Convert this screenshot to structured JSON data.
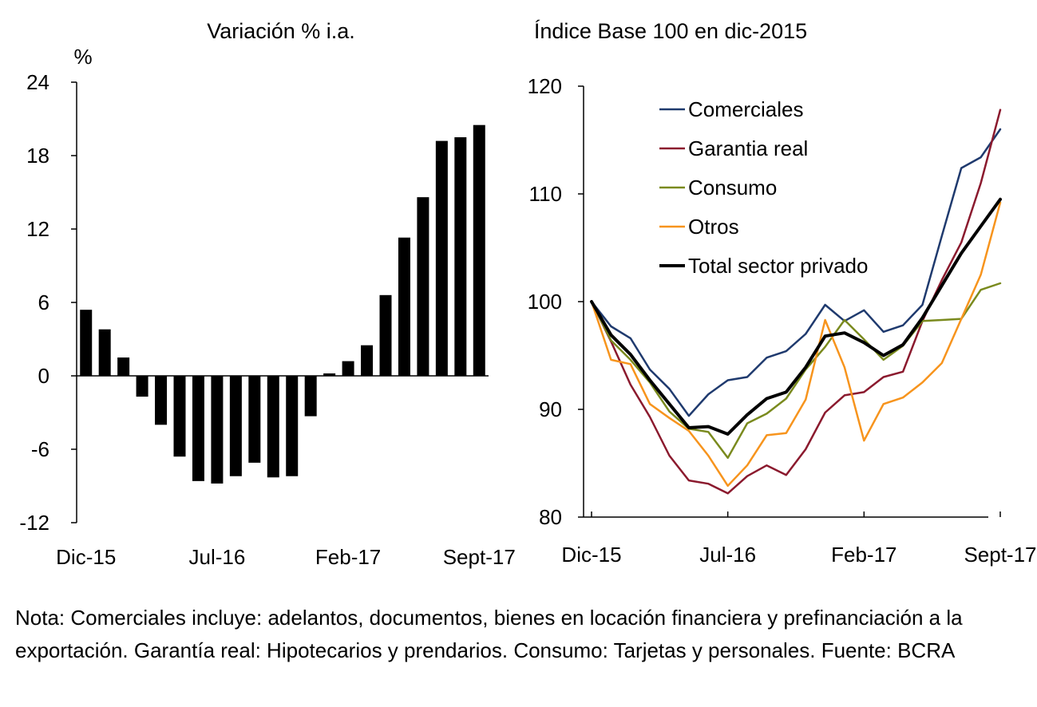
{
  "chart_data": [
    {
      "type": "bar",
      "title": "Variación % i.a.",
      "ylabel": "%",
      "ylim": [
        -12,
        24
      ],
      "yticks": [
        "24",
        "18",
        "12",
        "6",
        "0",
        "-6",
        "-12"
      ],
      "ytick_values": [
        24,
        18,
        12,
        6,
        0,
        -6,
        -12
      ],
      "xtick_labels": [
        "Dic-15",
        "Jul-16",
        "Feb-17",
        "Sept-17"
      ],
      "xtick_indices": [
        0,
        7,
        14,
        21
      ],
      "bar_color": "#000000",
      "values": [
        5.4,
        3.8,
        1.5,
        -1.7,
        -4.0,
        -6.6,
        -8.6,
        -8.8,
        -8.2,
        -7.1,
        -8.3,
        -8.2,
        -3.3,
        0.2,
        1.2,
        2.5,
        6.6,
        11.3,
        14.6,
        19.2,
        19.5,
        20.5
      ]
    },
    {
      "type": "line",
      "title": "Índice Base 100 en dic-2015",
      "ylim": [
        80,
        120
      ],
      "yticks": [
        "120",
        "110",
        "100",
        "90",
        "80"
      ],
      "ytick_values": [
        120,
        110,
        100,
        90,
        80
      ],
      "xtick_labels": [
        "Dic-15",
        "Jul-16",
        "Feb-17",
        "Sept-17"
      ],
      "xtick_indices": [
        0,
        7,
        14,
        21
      ],
      "series": [
        {
          "name": "Comerciales",
          "color": "#1f3a6e",
          "width": 2.5,
          "values": [
            100,
            97.7,
            96.6,
            93.7,
            91.9,
            89.4,
            91.4,
            92.7,
            93.0,
            94.8,
            95.4,
            97.0,
            99.7,
            98.2,
            99.2,
            97.2,
            97.8,
            99.7,
            106.1,
            112.4,
            113.4,
            116.0
          ]
        },
        {
          "name": "Garantia real",
          "color": "#8b1a2e",
          "width": 2.5,
          "values": [
            100,
            96.3,
            92.3,
            89.3,
            85.7,
            83.4,
            83.1,
            82.2,
            83.8,
            84.8,
            83.9,
            86.3,
            89.7,
            91.3,
            91.6,
            93.0,
            93.5,
            98.2,
            102.0,
            105.5,
            111.0,
            117.8
          ]
        },
        {
          "name": "Consumo",
          "color": "#7a8a1e",
          "width": 2.5,
          "values": [
            100,
            96.4,
            94.6,
            92.5,
            89.8,
            88.2,
            87.9,
            85.5,
            88.7,
            89.6,
            91.0,
            93.7,
            95.8,
            98.3,
            96.5,
            94.6,
            95.9,
            98.2,
            98.3,
            98.4,
            101.1,
            101.7
          ]
        },
        {
          "name": "Otros",
          "color": "#f7941d",
          "width": 2.5,
          "values": [
            100,
            94.6,
            94.2,
            90.5,
            89.2,
            88.0,
            85.7,
            82.9,
            84.8,
            87.6,
            87.8,
            90.9,
            98.3,
            93.9,
            87.1,
            90.5,
            91.1,
            92.5,
            94.3,
            98.4,
            102.5,
            109.2
          ]
        },
        {
          "name": "Total sector privado",
          "color": "#000000",
          "width": 4,
          "values": [
            100,
            96.9,
            95.1,
            92.7,
            90.5,
            88.3,
            88.4,
            87.7,
            89.5,
            91.0,
            91.6,
            93.9,
            96.8,
            97.1,
            96.2,
            95.0,
            96.0,
            98.5,
            101.5,
            104.5,
            107.0,
            109.5
          ]
        }
      ],
      "legend_position": "top-left"
    }
  ],
  "note": "Nota: Comerciales incluye: adelantos, documentos, bienes en locación financiera y prefinanciación a la exportación. Garantía real: Hipotecarios y prendarios. Consumo: Tarjetas y personales. Fuente: BCRA"
}
